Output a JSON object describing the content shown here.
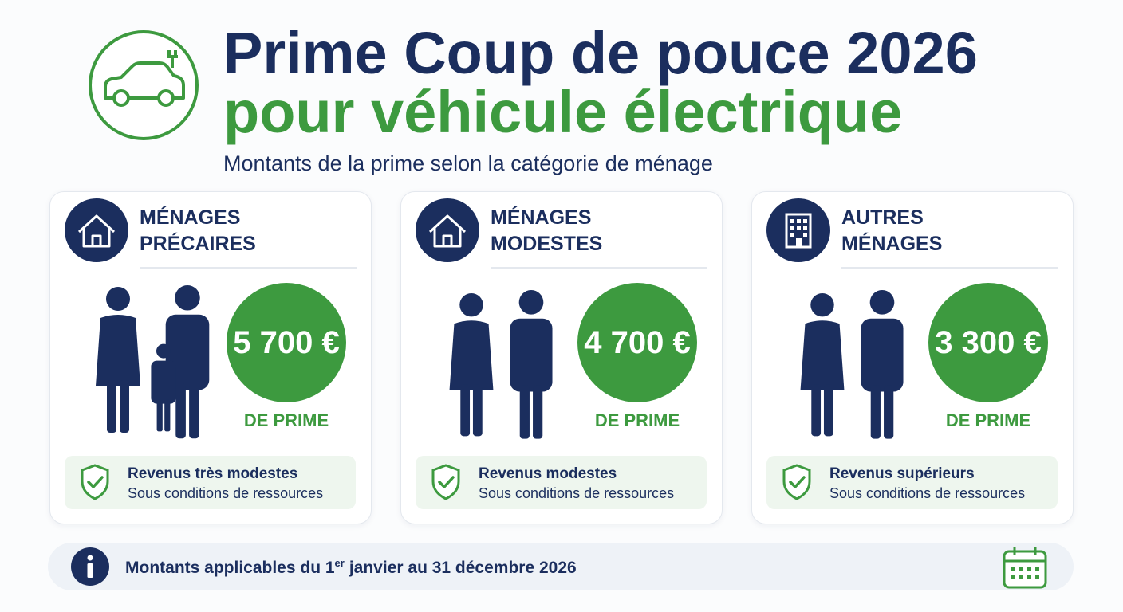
{
  "header": {
    "title_lines": [
      "Prime Coup de pouce 2026",
      "pour véhicule électrique"
    ],
    "subtitle": "Montants de la prime selon la catégorie de ménage"
  },
  "cards": [
    {
      "title_lines": [
        "MÉNAGES",
        "PRÉCAIRES"
      ],
      "amount": "5 700 €",
      "amount_caption": "DE PRIME",
      "income": "Revenus très modestes",
      "condition": "Sous conditions de ressources"
    },
    {
      "title_lines": [
        "MÉNAGES",
        "MODESTES"
      ],
      "amount": "4 700 €",
      "amount_caption": "DE PRIME",
      "income": "Revenus modestes",
      "condition": "Sous conditions de ressources"
    },
    {
      "title_lines": [
        "AUTRES",
        "MÉNAGES"
      ],
      "amount": "3 300 €",
      "amount_caption": "DE PRIME",
      "income": "Revenus supérieurs",
      "condition": "Sous conditions de ressources"
    }
  ],
  "footer": {
    "note_start": "Montants applicables du 1",
    "note_sup": "er",
    "note_end": "janvier au 31 décembre 2026"
  }
}
